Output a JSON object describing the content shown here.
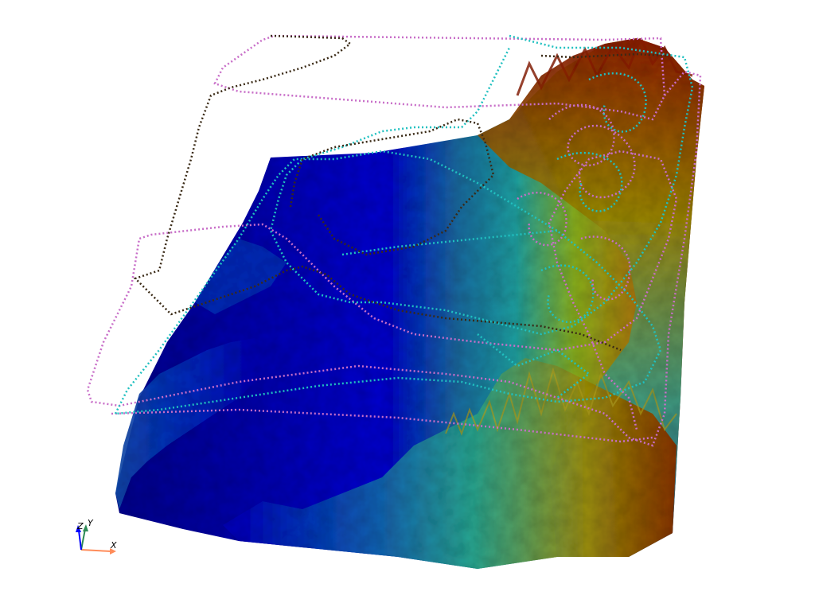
{
  "scene": {
    "background_color": "#ffffff",
    "terrain": {
      "colormap": [
        "#00008b",
        "#0000cd",
        "#1e90ff",
        "#20b2aa",
        "#9acd32",
        "#b8860b",
        "#8b1a00"
      ]
    },
    "trajectories": [
      {
        "name": "",
        "color": "#c86ec8"
      },
      {
        "name": "",
        "color": "#20c0c0"
      },
      {
        "name": "",
        "color": "#3a2a16"
      }
    ]
  },
  "orientation_axes": {
    "x_label": "X",
    "y_label": "Y",
    "z_label": "Z",
    "x_color": "#ff8c5a",
    "y_color": "#2e8b57",
    "z_color": "#0000ff"
  }
}
